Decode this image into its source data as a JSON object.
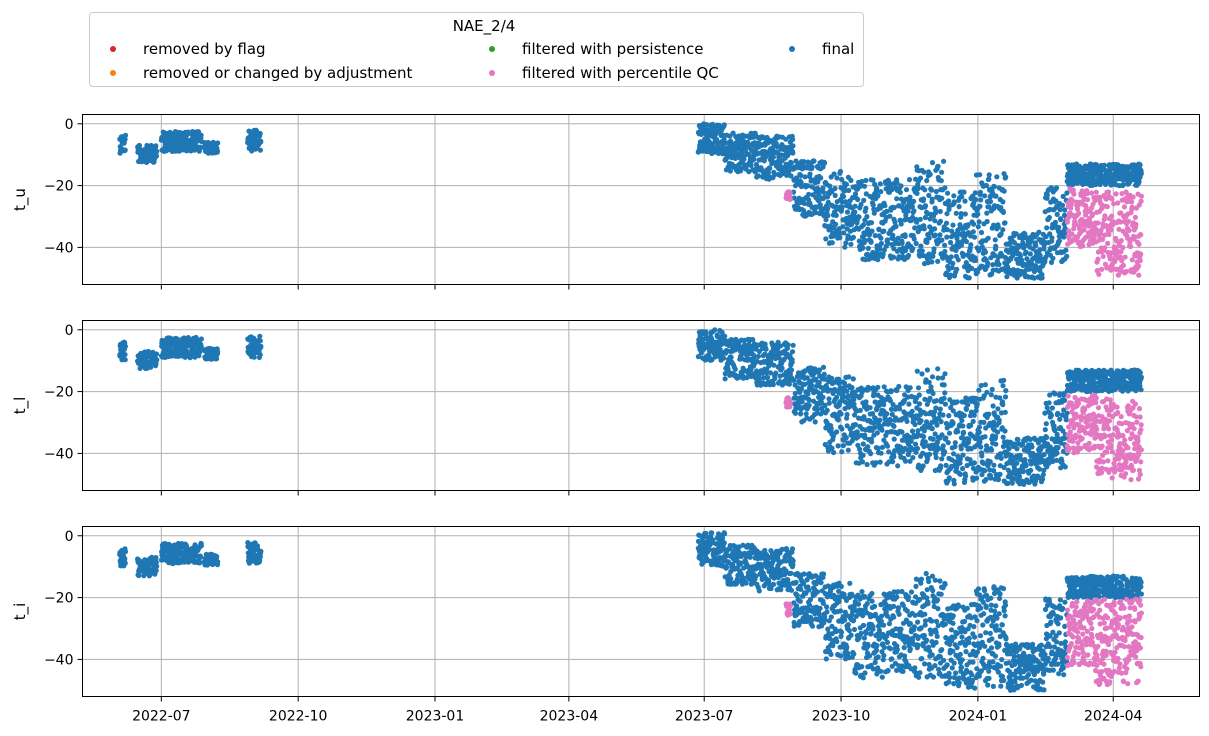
{
  "chart_data": {
    "type": "scatter",
    "legend": {
      "title": "NAE_2/4",
      "placement": "top",
      "entries": [
        {
          "label": "removed by flag",
          "color": "#d62728"
        },
        {
          "label": "filtered with persistence",
          "color": "#2ca02c"
        },
        {
          "label": "final",
          "color": "#1f77b4"
        },
        {
          "label": "removed or changed by adjustment",
          "color": "#ff7f0e"
        },
        {
          "label": "filtered with percentile QC",
          "color": "#e377c2"
        }
      ]
    },
    "x_ticks": [
      "2022-07",
      "2022-10",
      "2023-01",
      "2023-04",
      "2023-07",
      "2023-10",
      "2024-01",
      "2024-04"
    ],
    "xlim": [
      "2022-05-09",
      "2024-05-29"
    ],
    "ylim": [
      -52,
      3
    ],
    "y_ticks": [
      0,
      -20,
      -40
    ],
    "grid": true,
    "panels": [
      {
        "ylabel": "t_u",
        "final_ranges": [
          {
            "start": "2022-06-03",
            "end": "2022-06-07",
            "lo": -9.5,
            "hi": -3
          },
          {
            "start": "2022-06-15",
            "end": "2022-06-28",
            "lo": -12.5,
            "hi": -7
          },
          {
            "start": "2022-07-01",
            "end": "2022-07-28",
            "lo": -9,
            "hi": -2.5
          },
          {
            "start": "2022-07-30",
            "end": "2022-08-08",
            "lo": -9.5,
            "hi": -6
          },
          {
            "start": "2022-08-28",
            "end": "2022-09-06",
            "lo": -9,
            "hi": -2
          },
          {
            "start": "2023-06-27",
            "end": "2023-07-15",
            "lo": -10,
            "hi": 0
          },
          {
            "start": "2023-07-15",
            "end": "2023-08-05",
            "lo": -16,
            "hi": -3
          },
          {
            "start": "2023-08-05",
            "end": "2023-08-30",
            "lo": -18,
            "hi": -4
          },
          {
            "start": "2023-08-30",
            "end": "2023-09-20",
            "lo": -30,
            "hi": -12
          },
          {
            "start": "2023-09-20",
            "end": "2023-10-10",
            "lo": -40,
            "hi": -15
          },
          {
            "start": "2023-10-10",
            "end": "2023-10-31",
            "lo": -44,
            "hi": -18
          },
          {
            "start": "2023-10-31",
            "end": "2023-11-20",
            "lo": -44,
            "hi": -18
          },
          {
            "start": "2023-11-20",
            "end": "2023-12-10",
            "lo": -46,
            "hi": -12
          },
          {
            "start": "2023-12-10",
            "end": "2023-12-31",
            "lo": -50,
            "hi": -22
          },
          {
            "start": "2023-12-31",
            "end": "2024-01-20",
            "lo": -49,
            "hi": -16
          },
          {
            "start": "2024-01-20",
            "end": "2024-02-15",
            "lo": -50,
            "hi": -35
          },
          {
            "start": "2024-02-15",
            "end": "2024-03-01",
            "lo": -45,
            "hi": -20
          },
          {
            "start": "2024-03-01",
            "end": "2024-04-20",
            "lo": -20,
            "hi": -13
          }
        ],
        "percentile_qc_ranges": [
          {
            "start": "2023-08-25",
            "end": "2023-08-28",
            "lo": -25,
            "hi": -22
          },
          {
            "start": "2024-03-01",
            "end": "2024-03-20",
            "lo": -40,
            "hi": -21
          },
          {
            "start": "2024-03-20",
            "end": "2024-04-20",
            "lo": -49,
            "hi": -22
          }
        ]
      },
      {
        "ylabel": "t_l",
        "final_ranges": [
          {
            "start": "2022-06-03",
            "end": "2022-06-07",
            "lo": -10,
            "hi": -4
          },
          {
            "start": "2022-06-15",
            "end": "2022-06-28",
            "lo": -12.5,
            "hi": -7
          },
          {
            "start": "2022-07-01",
            "end": "2022-07-28",
            "lo": -9,
            "hi": -2.5
          },
          {
            "start": "2022-07-30",
            "end": "2022-08-08",
            "lo": -9.5,
            "hi": -6
          },
          {
            "start": "2022-08-28",
            "end": "2022-09-06",
            "lo": -9,
            "hi": -2
          },
          {
            "start": "2023-06-27",
            "end": "2023-07-15",
            "lo": -10,
            "hi": 0
          },
          {
            "start": "2023-07-15",
            "end": "2023-08-05",
            "lo": -16,
            "hi": -3
          },
          {
            "start": "2023-08-05",
            "end": "2023-08-30",
            "lo": -18,
            "hi": -4
          },
          {
            "start": "2023-08-30",
            "end": "2023-09-20",
            "lo": -30,
            "hi": -12
          },
          {
            "start": "2023-09-20",
            "end": "2023-10-10",
            "lo": -40,
            "hi": -15
          },
          {
            "start": "2023-10-10",
            "end": "2023-10-31",
            "lo": -44,
            "hi": -18
          },
          {
            "start": "2023-10-31",
            "end": "2023-11-20",
            "lo": -44,
            "hi": -18
          },
          {
            "start": "2023-11-20",
            "end": "2023-12-10",
            "lo": -46,
            "hi": -12
          },
          {
            "start": "2023-12-10",
            "end": "2023-12-31",
            "lo": -50,
            "hi": -22
          },
          {
            "start": "2023-12-31",
            "end": "2024-01-20",
            "lo": -49,
            "hi": -16
          },
          {
            "start": "2024-01-20",
            "end": "2024-02-15",
            "lo": -50,
            "hi": -35
          },
          {
            "start": "2024-02-15",
            "end": "2024-03-01",
            "lo": -45,
            "hi": -20
          },
          {
            "start": "2024-03-01",
            "end": "2024-04-20",
            "lo": -20,
            "hi": -13
          }
        ],
        "percentile_qc_ranges": [
          {
            "start": "2023-08-25",
            "end": "2023-08-28",
            "lo": -25,
            "hi": -22
          },
          {
            "start": "2024-03-01",
            "end": "2024-03-20",
            "lo": -40,
            "hi": -21
          },
          {
            "start": "2024-03-20",
            "end": "2024-04-20",
            "lo": -49,
            "hi": -22
          }
        ]
      },
      {
        "ylabel": "t_i",
        "final_ranges": [
          {
            "start": "2022-06-03",
            "end": "2022-06-07",
            "lo": -10,
            "hi": -4
          },
          {
            "start": "2022-06-15",
            "end": "2022-06-28",
            "lo": -13,
            "hi": -7
          },
          {
            "start": "2022-07-01",
            "end": "2022-07-28",
            "lo": -9,
            "hi": -2.5
          },
          {
            "start": "2022-07-30",
            "end": "2022-08-08",
            "lo": -9.5,
            "hi": -6
          },
          {
            "start": "2022-08-28",
            "end": "2022-09-06",
            "lo": -9,
            "hi": -2
          },
          {
            "start": "2023-06-27",
            "end": "2023-07-15",
            "lo": -10,
            "hi": 1
          },
          {
            "start": "2023-07-15",
            "end": "2023-08-05",
            "lo": -16,
            "hi": -3
          },
          {
            "start": "2023-08-05",
            "end": "2023-08-30",
            "lo": -18,
            "hi": -4
          },
          {
            "start": "2023-08-30",
            "end": "2023-09-20",
            "lo": -30,
            "hi": -12
          },
          {
            "start": "2023-09-20",
            "end": "2023-10-10",
            "lo": -40,
            "hi": -15
          },
          {
            "start": "2023-10-10",
            "end": "2023-10-31",
            "lo": -46,
            "hi": -18
          },
          {
            "start": "2023-10-31",
            "end": "2023-11-20",
            "lo": -44,
            "hi": -18
          },
          {
            "start": "2023-11-20",
            "end": "2023-12-10",
            "lo": -46,
            "hi": -12
          },
          {
            "start": "2023-12-10",
            "end": "2023-12-31",
            "lo": -50,
            "hi": -22
          },
          {
            "start": "2023-12-31",
            "end": "2024-01-20",
            "lo": -49,
            "hi": -16
          },
          {
            "start": "2024-01-20",
            "end": "2024-02-15",
            "lo": -50,
            "hi": -35
          },
          {
            "start": "2024-02-15",
            "end": "2024-03-01",
            "lo": -45,
            "hi": -20
          },
          {
            "start": "2024-03-01",
            "end": "2024-04-20",
            "lo": -20,
            "hi": -13
          }
        ],
        "percentile_qc_ranges": [
          {
            "start": "2023-08-25",
            "end": "2023-08-28",
            "lo": -26,
            "hi": -22
          },
          {
            "start": "2024-03-01",
            "end": "2024-03-20",
            "lo": -42,
            "hi": -21
          },
          {
            "start": "2024-03-20",
            "end": "2024-04-20",
            "lo": -49,
            "hi": -20
          }
        ]
      }
    ]
  }
}
